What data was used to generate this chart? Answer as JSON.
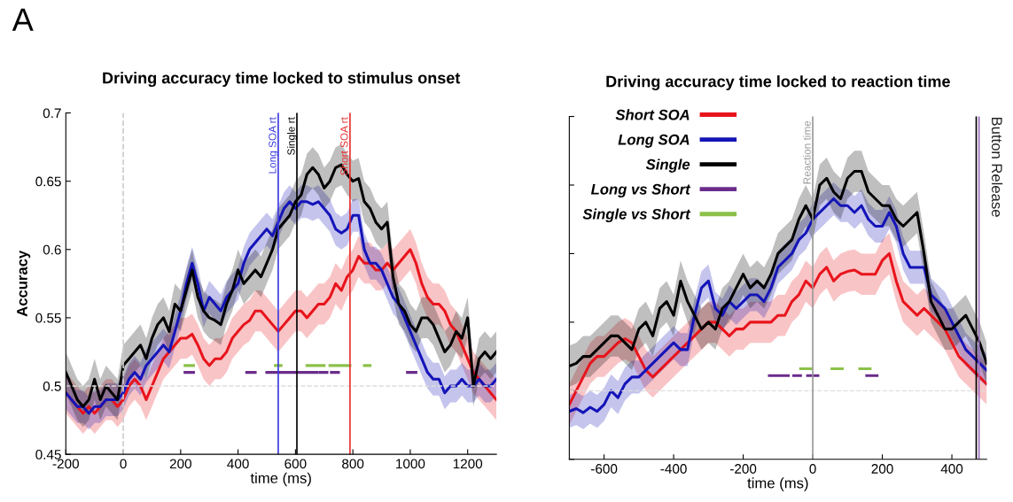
{
  "chart_data": [
    {
      "type": "line",
      "title": "Driving accuracy time locked to stimulus onset",
      "xlabel": "time (ms)",
      "ylabel": "Accuracy",
      "annotations": [
        "A"
      ],
      "xlim": [
        -200,
        1300
      ],
      "xticks": [
        -200,
        0,
        200,
        400,
        600,
        800,
        1000,
        1200
      ],
      "ylim": [
        0.45,
        0.7
      ],
      "yticks": [
        0.45,
        0.5,
        0.55,
        0.6,
        0.65,
        0.7
      ],
      "grid": false,
      "legend": false,
      "line_style": "solid",
      "marker": "none",
      "x": [
        -200,
        -180,
        -160,
        -140,
        -120,
        -100,
        -80,
        -60,
        -40,
        -20,
        0,
        20,
        40,
        60,
        80,
        100,
        120,
        140,
        160,
        180,
        200,
        220,
        240,
        260,
        280,
        300,
        320,
        340,
        360,
        380,
        400,
        420,
        440,
        460,
        480,
        500,
        520,
        540,
        560,
        580,
        600,
        620,
        640,
        660,
        680,
        700,
        720,
        740,
        760,
        780,
        800,
        820,
        840,
        860,
        880,
        900,
        920,
        940,
        960,
        980,
        1000,
        1020,
        1040,
        1060,
        1080,
        1100,
        1120,
        1140,
        1160,
        1180,
        1200,
        1220,
        1240,
        1260,
        1280,
        1300
      ],
      "series": [
        {
          "color": "#e8141c",
          "values": [
            0.495,
            0.49,
            0.485,
            0.48,
            0.485,
            0.48,
            0.485,
            0.49,
            0.49,
            0.485,
            0.49,
            0.5,
            0.505,
            0.5,
            0.49,
            0.5,
            0.51,
            0.52,
            0.525,
            0.53,
            0.535,
            0.535,
            0.538,
            0.53,
            0.52,
            0.515,
            0.52,
            0.52,
            0.525,
            0.535,
            0.54,
            0.545,
            0.548,
            0.555,
            0.555,
            0.55,
            0.545,
            0.54,
            0.545,
            0.55,
            0.555,
            0.555,
            0.55,
            0.555,
            0.56,
            0.56,
            0.565,
            0.575,
            0.57,
            0.58,
            0.585,
            0.595,
            0.59,
            0.59,
            0.585,
            0.585,
            0.59,
            0.585,
            0.59,
            0.595,
            0.6,
            0.59,
            0.575,
            0.565,
            0.56,
            0.56,
            0.555,
            0.545,
            0.54,
            0.53,
            0.52,
            0.51,
            0.505,
            0.5,
            0.495,
            0.49
          ],
          "lower": [
            0.48,
            0.475,
            0.47,
            0.465,
            0.47,
            0.465,
            0.47,
            0.475,
            0.475,
            0.47,
            0.475,
            0.485,
            0.49,
            0.485,
            0.475,
            0.485,
            0.495,
            0.505,
            0.51,
            0.515,
            0.52,
            0.52,
            0.523,
            0.515,
            0.505,
            0.5,
            0.505,
            0.505,
            0.51,
            0.52,
            0.525,
            0.53,
            0.533,
            0.54,
            0.54,
            0.535,
            0.53,
            0.525,
            0.53,
            0.535,
            0.54,
            0.54,
            0.535,
            0.54,
            0.545,
            0.545,
            0.55,
            0.56,
            0.555,
            0.565,
            0.57,
            0.58,
            0.575,
            0.575,
            0.57,
            0.57,
            0.575,
            0.57,
            0.575,
            0.58,
            0.585,
            0.575,
            0.56,
            0.55,
            0.545,
            0.545,
            0.54,
            0.53,
            0.525,
            0.515,
            0.505,
            0.495,
            0.49,
            0.485,
            0.48,
            0.475
          ],
          "upper": [
            0.51,
            0.505,
            0.5,
            0.495,
            0.5,
            0.495,
            0.5,
            0.505,
            0.505,
            0.5,
            0.505,
            0.515,
            0.52,
            0.515,
            0.505,
            0.515,
            0.525,
            0.535,
            0.54,
            0.545,
            0.55,
            0.55,
            0.553,
            0.545,
            0.535,
            0.53,
            0.535,
            0.535,
            0.54,
            0.55,
            0.555,
            0.56,
            0.563,
            0.57,
            0.57,
            0.565,
            0.56,
            0.555,
            0.56,
            0.565,
            0.57,
            0.57,
            0.565,
            0.57,
            0.575,
            0.575,
            0.58,
            0.59,
            0.585,
            0.595,
            0.6,
            0.61,
            0.605,
            0.605,
            0.6,
            0.6,
            0.605,
            0.6,
            0.605,
            0.61,
            0.615,
            0.605,
            0.59,
            0.58,
            0.575,
            0.575,
            0.57,
            0.56,
            0.555,
            0.545,
            0.535,
            0.525,
            0.52,
            0.515,
            0.51,
            0.505
          ]
        },
        {
          "color": "#1414b8",
          "values": [
            0.495,
            0.49,
            0.485,
            0.485,
            0.48,
            0.485,
            0.485,
            0.49,
            0.49,
            0.49,
            0.495,
            0.505,
            0.51,
            0.505,
            0.515,
            0.52,
            0.525,
            0.53,
            0.525,
            0.54,
            0.555,
            0.575,
            0.59,
            0.575,
            0.555,
            0.565,
            0.56,
            0.555,
            0.565,
            0.57,
            0.575,
            0.59,
            0.6,
            0.605,
            0.61,
            0.615,
            0.61,
            0.62,
            0.63,
            0.635,
            0.63,
            0.635,
            0.635,
            0.633,
            0.635,
            0.63,
            0.625,
            0.615,
            0.612,
            0.615,
            0.625,
            0.625,
            0.6,
            0.59,
            0.59,
            0.585,
            0.575,
            0.565,
            0.56,
            0.55,
            0.54,
            0.53,
            0.52,
            0.51,
            0.505,
            0.505,
            0.495,
            0.5,
            0.5,
            0.505,
            0.5,
            0.5,
            0.505,
            0.5,
            0.5,
            0.505
          ],
          "lower": [
            0.483,
            0.478,
            0.473,
            0.473,
            0.468,
            0.473,
            0.473,
            0.478,
            0.478,
            0.478,
            0.483,
            0.493,
            0.498,
            0.493,
            0.503,
            0.508,
            0.513,
            0.518,
            0.513,
            0.528,
            0.543,
            0.563,
            0.578,
            0.563,
            0.543,
            0.553,
            0.548,
            0.543,
            0.553,
            0.558,
            0.563,
            0.578,
            0.588,
            0.593,
            0.598,
            0.603,
            0.598,
            0.608,
            0.618,
            0.623,
            0.618,
            0.623,
            0.623,
            0.621,
            0.623,
            0.618,
            0.613,
            0.603,
            0.6,
            0.603,
            0.613,
            0.613,
            0.588,
            0.578,
            0.578,
            0.573,
            0.563,
            0.553,
            0.548,
            0.538,
            0.528,
            0.518,
            0.508,
            0.498,
            0.493,
            0.493,
            0.483,
            0.488,
            0.488,
            0.493,
            0.488,
            0.488,
            0.493,
            0.488,
            0.488,
            0.493
          ],
          "upper": [
            0.507,
            0.502,
            0.497,
            0.497,
            0.492,
            0.497,
            0.497,
            0.502,
            0.502,
            0.502,
            0.507,
            0.517,
            0.522,
            0.517,
            0.527,
            0.532,
            0.537,
            0.542,
            0.537,
            0.552,
            0.567,
            0.587,
            0.602,
            0.587,
            0.567,
            0.577,
            0.572,
            0.567,
            0.577,
            0.582,
            0.587,
            0.602,
            0.612,
            0.617,
            0.622,
            0.627,
            0.622,
            0.632,
            0.642,
            0.647,
            0.642,
            0.647,
            0.647,
            0.645,
            0.647,
            0.642,
            0.637,
            0.627,
            0.624,
            0.627,
            0.637,
            0.637,
            0.612,
            0.602,
            0.602,
            0.597,
            0.587,
            0.577,
            0.572,
            0.562,
            0.552,
            0.542,
            0.532,
            0.522,
            0.517,
            0.517,
            0.507,
            0.512,
            0.512,
            0.517,
            0.512,
            0.512,
            0.517,
            0.512,
            0.512,
            0.517
          ]
        },
        {
          "color": "#000000",
          "values": [
            0.51,
            0.5,
            0.49,
            0.485,
            0.49,
            0.505,
            0.49,
            0.5,
            0.495,
            0.49,
            0.515,
            0.52,
            0.525,
            0.53,
            0.52,
            0.535,
            0.545,
            0.55,
            0.54,
            0.56,
            0.555,
            0.57,
            0.585,
            0.565,
            0.555,
            0.55,
            0.548,
            0.545,
            0.56,
            0.57,
            0.585,
            0.575,
            0.58,
            0.585,
            0.58,
            0.59,
            0.6,
            0.615,
            0.62,
            0.625,
            0.635,
            0.64,
            0.655,
            0.66,
            0.655,
            0.645,
            0.65,
            0.66,
            0.662,
            0.655,
            0.65,
            0.652,
            0.635,
            0.63,
            0.62,
            0.615,
            0.62,
            0.58,
            0.56,
            0.555,
            0.545,
            0.54,
            0.55,
            0.55,
            0.545,
            0.535,
            0.525,
            0.53,
            0.54,
            0.535,
            0.55,
            0.5,
            0.52,
            0.525,
            0.52,
            0.525
          ],
          "lower": [
            0.495,
            0.485,
            0.475,
            0.47,
            0.475,
            0.49,
            0.475,
            0.485,
            0.48,
            0.475,
            0.5,
            0.505,
            0.51,
            0.515,
            0.505,
            0.52,
            0.53,
            0.535,
            0.525,
            0.545,
            0.54,
            0.555,
            0.57,
            0.55,
            0.54,
            0.535,
            0.533,
            0.53,
            0.545,
            0.555,
            0.57,
            0.56,
            0.565,
            0.57,
            0.565,
            0.575,
            0.585,
            0.6,
            0.605,
            0.61,
            0.62,
            0.625,
            0.64,
            0.645,
            0.64,
            0.63,
            0.635,
            0.645,
            0.647,
            0.64,
            0.635,
            0.637,
            0.62,
            0.615,
            0.605,
            0.6,
            0.605,
            0.565,
            0.545,
            0.54,
            0.53,
            0.525,
            0.535,
            0.535,
            0.53,
            0.52,
            0.51,
            0.515,
            0.525,
            0.52,
            0.535,
            0.485,
            0.505,
            0.51,
            0.505,
            0.51
          ],
          "upper": [
            0.525,
            0.515,
            0.505,
            0.5,
            0.505,
            0.52,
            0.505,
            0.515,
            0.51,
            0.505,
            0.53,
            0.535,
            0.54,
            0.545,
            0.535,
            0.55,
            0.56,
            0.565,
            0.555,
            0.575,
            0.57,
            0.585,
            0.6,
            0.58,
            0.57,
            0.565,
            0.563,
            0.56,
            0.575,
            0.585,
            0.6,
            0.59,
            0.595,
            0.6,
            0.595,
            0.605,
            0.615,
            0.63,
            0.635,
            0.64,
            0.65,
            0.655,
            0.67,
            0.675,
            0.67,
            0.66,
            0.665,
            0.675,
            0.677,
            0.67,
            0.665,
            0.667,
            0.65,
            0.645,
            0.635,
            0.63,
            0.635,
            0.595,
            0.575,
            0.57,
            0.56,
            0.555,
            0.565,
            0.565,
            0.56,
            0.55,
            0.54,
            0.545,
            0.555,
            0.55,
            0.565,
            0.515,
            0.535,
            0.54,
            0.535,
            0.54
          ]
        },
        {
          "color": "#6a2c8a",
          "x": [
            215,
            245,
            246,
            430,
            460,
            461,
            500,
            675,
            676,
            685,
            710,
            711,
            725,
            750,
            751,
            990,
            1020
          ],
          "values": [
            0.51,
            0.51,
            null,
            0.51,
            0.51,
            null,
            0.51,
            0.51,
            null,
            0.51,
            0.51,
            null,
            0.51,
            0.51,
            null,
            0.51,
            0.51
          ]
        },
        {
          "color": "#8cc04a",
          "x": [
            215,
            245,
            246,
            530,
            550,
            551,
            640,
            700,
            701,
            720,
            790,
            791,
            840,
            860
          ],
          "values": [
            0.515,
            0.515,
            null,
            0.515,
            0.515,
            null,
            0.515,
            0.515,
            null,
            0.515,
            0.515,
            null,
            0.515,
            0.515
          ]
        }
      ],
      "ref_lines": [
        {
          "axis": "x",
          "value": 0,
          "color": "#cccccc",
          "line_style": "dashed"
        },
        {
          "axis": "y",
          "value": 0.5,
          "color": "#dddddd",
          "line_style": "dashed"
        },
        {
          "axis": "x",
          "value": 540,
          "label": "Long SOA rt",
          "color": "#3a3ae0",
          "line_style": "solid"
        },
        {
          "axis": "x",
          "value": 605,
          "label": "Single rt",
          "color": "#000000",
          "line_style": "solid"
        },
        {
          "axis": "x",
          "value": 790,
          "label": "Short SOA rt",
          "color": "#e83030",
          "line_style": "solid"
        }
      ]
    },
    {
      "type": "line",
      "title": "Driving accuracy time locked to reaction time",
      "xlabel": "time (ms)",
      "xlim": [
        -700,
        500
      ],
      "xticks": [
        -600,
        -400,
        -200,
        0,
        200,
        400
      ],
      "ylim": [
        0.45,
        0.7
      ],
      "yticks": [
        0.45,
        0.5,
        0.55,
        0.6,
        0.65,
        0.7
      ],
      "tick_labels": "x",
      "grid": false,
      "legend": "top left",
      "line_style": "solid",
      "marker": "none",
      "x": [
        -700,
        -680,
        -660,
        -640,
        -620,
        -600,
        -580,
        -560,
        -540,
        -520,
        -500,
        -480,
        -460,
        -440,
        -420,
        -400,
        -380,
        -360,
        -340,
        -320,
        -300,
        -280,
        -260,
        -240,
        -220,
        -200,
        -180,
        -160,
        -140,
        -120,
        -100,
        -80,
        -60,
        -40,
        -20,
        0,
        20,
        40,
        60,
        80,
        100,
        120,
        140,
        160,
        180,
        200,
        220,
        240,
        260,
        280,
        300,
        320,
        340,
        360,
        380,
        400,
        420,
        440,
        460,
        480,
        500
      ],
      "series": [
        {
          "name": "Short SOA",
          "color": "#e8141c",
          "values": [
            0.49,
            0.5,
            0.51,
            0.52,
            0.525,
            0.525,
            0.53,
            0.535,
            0.538,
            0.535,
            0.525,
            0.515,
            0.51,
            0.515,
            0.52,
            0.525,
            0.53,
            0.535,
            0.54,
            0.545,
            0.55,
            0.55,
            0.545,
            0.54,
            0.545,
            0.545,
            0.55,
            0.55,
            0.55,
            0.55,
            0.555,
            0.555,
            0.565,
            0.57,
            0.58,
            0.575,
            0.585,
            0.59,
            0.58,
            0.585,
            0.587,
            0.588,
            0.585,
            0.585,
            0.585,
            0.595,
            0.6,
            0.58,
            0.565,
            0.56,
            0.555,
            0.56,
            0.555,
            0.55,
            0.545,
            0.535,
            0.525,
            0.52,
            0.515,
            0.51,
            0.505
          ],
          "lower": [
            0.475,
            0.485,
            0.495,
            0.505,
            0.51,
            0.51,
            0.515,
            0.52,
            0.523,
            0.52,
            0.51,
            0.5,
            0.495,
            0.5,
            0.505,
            0.51,
            0.515,
            0.52,
            0.525,
            0.53,
            0.535,
            0.535,
            0.53,
            0.525,
            0.53,
            0.53,
            0.535,
            0.535,
            0.535,
            0.535,
            0.54,
            0.54,
            0.55,
            0.555,
            0.565,
            0.56,
            0.57,
            0.575,
            0.565,
            0.57,
            0.572,
            0.573,
            0.57,
            0.57,
            0.57,
            0.58,
            0.585,
            0.565,
            0.55,
            0.545,
            0.54,
            0.545,
            0.54,
            0.535,
            0.53,
            0.52,
            0.51,
            0.505,
            0.5,
            0.495,
            0.49
          ],
          "upper": [
            0.505,
            0.515,
            0.525,
            0.535,
            0.54,
            0.54,
            0.545,
            0.55,
            0.553,
            0.55,
            0.54,
            0.53,
            0.525,
            0.53,
            0.535,
            0.54,
            0.545,
            0.55,
            0.555,
            0.56,
            0.565,
            0.565,
            0.56,
            0.555,
            0.56,
            0.56,
            0.565,
            0.565,
            0.565,
            0.565,
            0.57,
            0.57,
            0.58,
            0.585,
            0.595,
            0.59,
            0.6,
            0.605,
            0.595,
            0.6,
            0.602,
            0.603,
            0.6,
            0.6,
            0.6,
            0.61,
            0.615,
            0.595,
            0.58,
            0.575,
            0.57,
            0.575,
            0.57,
            0.565,
            0.56,
            0.55,
            0.54,
            0.535,
            0.53,
            0.525,
            0.52
          ]
        },
        {
          "name": "Long SOA",
          "color": "#1414b8",
          "values": [
            0.485,
            0.487,
            0.484,
            0.488,
            0.485,
            0.49,
            0.5,
            0.495,
            0.505,
            0.51,
            0.51,
            0.515,
            0.52,
            0.525,
            0.53,
            0.535,
            0.53,
            0.53,
            0.555,
            0.575,
            0.58,
            0.56,
            0.555,
            0.565,
            0.56,
            0.565,
            0.57,
            0.57,
            0.565,
            0.575,
            0.59,
            0.595,
            0.6,
            0.61,
            0.615,
            0.625,
            0.63,
            0.635,
            0.64,
            0.635,
            0.635,
            0.63,
            0.635,
            0.625,
            0.62,
            0.62,
            0.63,
            0.62,
            0.6,
            0.59,
            0.59,
            0.59,
            0.57,
            0.565,
            0.56,
            0.55,
            0.54,
            0.53,
            0.525,
            0.52,
            0.515
          ],
          "lower": [
            0.473,
            0.475,
            0.472,
            0.476,
            0.473,
            0.478,
            0.488,
            0.483,
            0.493,
            0.498,
            0.498,
            0.503,
            0.508,
            0.513,
            0.518,
            0.523,
            0.518,
            0.518,
            0.543,
            0.563,
            0.568,
            0.548,
            0.543,
            0.553,
            0.548,
            0.553,
            0.558,
            0.558,
            0.553,
            0.563,
            0.578,
            0.583,
            0.588,
            0.598,
            0.603,
            0.613,
            0.618,
            0.623,
            0.628,
            0.623,
            0.623,
            0.618,
            0.623,
            0.613,
            0.608,
            0.608,
            0.618,
            0.608,
            0.588,
            0.578,
            0.578,
            0.578,
            0.558,
            0.553,
            0.548,
            0.538,
            0.528,
            0.518,
            0.513,
            0.508,
            0.503
          ],
          "upper": [
            0.497,
            0.499,
            0.496,
            0.5,
            0.497,
            0.502,
            0.512,
            0.507,
            0.517,
            0.522,
            0.522,
            0.527,
            0.532,
            0.537,
            0.542,
            0.547,
            0.542,
            0.542,
            0.567,
            0.587,
            0.592,
            0.572,
            0.567,
            0.577,
            0.572,
            0.577,
            0.582,
            0.582,
            0.577,
            0.587,
            0.602,
            0.607,
            0.612,
            0.622,
            0.627,
            0.637,
            0.642,
            0.647,
            0.652,
            0.647,
            0.647,
            0.642,
            0.647,
            0.637,
            0.632,
            0.632,
            0.642,
            0.632,
            0.612,
            0.602,
            0.602,
            0.602,
            0.582,
            0.577,
            0.572,
            0.562,
            0.552,
            0.542,
            0.537,
            0.532,
            0.527
          ]
        },
        {
          "name": "Single",
          "color": "#000000",
          "values": [
            0.518,
            0.52,
            0.525,
            0.525,
            0.53,
            0.535,
            0.54,
            0.54,
            0.535,
            0.53,
            0.545,
            0.55,
            0.54,
            0.56,
            0.565,
            0.555,
            0.58,
            0.565,
            0.555,
            0.545,
            0.55,
            0.545,
            0.56,
            0.565,
            0.575,
            0.585,
            0.575,
            0.58,
            0.575,
            0.585,
            0.6,
            0.605,
            0.61,
            0.625,
            0.635,
            0.625,
            0.65,
            0.655,
            0.645,
            0.64,
            0.655,
            0.66,
            0.66,
            0.645,
            0.64,
            0.635,
            0.635,
            0.625,
            0.62,
            0.625,
            0.63,
            0.6,
            0.565,
            0.555,
            0.545,
            0.545,
            0.55,
            0.555,
            0.545,
            0.535,
            0.52
          ],
          "lower": [
            0.503,
            0.505,
            0.51,
            0.51,
            0.515,
            0.52,
            0.525,
            0.525,
            0.52,
            0.515,
            0.53,
            0.535,
            0.525,
            0.545,
            0.55,
            0.54,
            0.565,
            0.55,
            0.54,
            0.53,
            0.535,
            0.53,
            0.545,
            0.55,
            0.56,
            0.57,
            0.56,
            0.565,
            0.56,
            0.57,
            0.585,
            0.59,
            0.595,
            0.61,
            0.62,
            0.61,
            0.635,
            0.64,
            0.63,
            0.625,
            0.64,
            0.645,
            0.645,
            0.63,
            0.625,
            0.62,
            0.62,
            0.61,
            0.605,
            0.61,
            0.615,
            0.585,
            0.55,
            0.54,
            0.53,
            0.53,
            0.535,
            0.54,
            0.53,
            0.52,
            0.505
          ],
          "upper": [
            0.533,
            0.535,
            0.54,
            0.54,
            0.545,
            0.55,
            0.555,
            0.555,
            0.55,
            0.545,
            0.56,
            0.565,
            0.555,
            0.575,
            0.58,
            0.57,
            0.595,
            0.58,
            0.57,
            0.56,
            0.565,
            0.56,
            0.575,
            0.58,
            0.59,
            0.6,
            0.59,
            0.595,
            0.59,
            0.6,
            0.615,
            0.62,
            0.625,
            0.64,
            0.65,
            0.64,
            0.665,
            0.67,
            0.66,
            0.655,
            0.67,
            0.675,
            0.675,
            0.66,
            0.655,
            0.65,
            0.65,
            0.64,
            0.635,
            0.64,
            0.645,
            0.615,
            0.58,
            0.57,
            0.56,
            0.56,
            0.565,
            0.57,
            0.56,
            0.55,
            0.535
          ]
        },
        {
          "name": "Long vs Short",
          "color": "#6a2c8a",
          "x": [
            -125,
            -70,
            -69,
            -55,
            -35,
            -34,
            -15,
            15,
            16,
            155,
            185
          ],
          "values": [
            0.511,
            0.511,
            null,
            0.511,
            0.511,
            null,
            0.511,
            0.511,
            null,
            0.511,
            0.511
          ]
        },
        {
          "name": "Single vs Short",
          "color": "#8cc04a",
          "x": [
            -35,
            -5,
            -4,
            55,
            85,
            86,
            135,
            165
          ],
          "values": [
            0.516,
            0.516,
            null,
            0.516,
            0.516,
            null,
            0.516,
            0.516
          ]
        }
      ],
      "ref_lines": [
        {
          "axis": "y",
          "value": 0.5,
          "color": "#dddddd",
          "line_style": "dashed"
        },
        {
          "axis": "x",
          "value": 0,
          "label": "Reaction time",
          "color": "#999999",
          "line_style": "solid"
        },
        {
          "axis": "x",
          "value": 470,
          "color": "#000000",
          "line_style": "solid"
        },
        {
          "axis": "x",
          "value": 478,
          "label": "Button Release",
          "color": "#9b6bbf",
          "line_style": "solid"
        }
      ]
    }
  ]
}
